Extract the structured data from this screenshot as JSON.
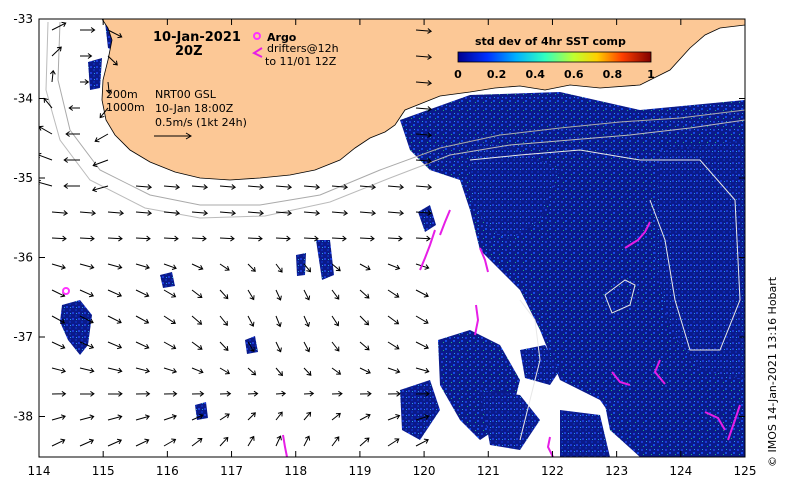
{
  "map": {
    "date": "10-Jan-2021",
    "time": "20Z",
    "legend_argo": "Argo",
    "legend_drifters": "drifters@12h",
    "legend_drifters_to": "to 11/01 12Z",
    "depth_200": "200m",
    "depth_1000": "1000m",
    "current_source": "NRT00 GSL",
    "current_time": "10-Jan 18:00Z",
    "scale_label": "0.5m/s (1kt 24h)",
    "colorbar_title": "std dev of 4hr SST comp",
    "colorbar_ticks": [
      "0",
      "0.2",
      "0.4",
      "0.6",
      "0.8",
      "1"
    ],
    "credit": "© IMOS 14-Jan-2021 13:16 Hobart",
    "lon_ticks": [
      "114",
      "115",
      "116",
      "117",
      "118",
      "119",
      "120",
      "121",
      "122",
      "123",
      "124",
      "125"
    ],
    "lat_ticks": [
      "-33",
      "-34",
      "-35",
      "-36",
      "-37",
      "-38"
    ],
    "colors": {
      "land": "#fcc896",
      "data_low": "#0a1a8a",
      "argo": "#ff33ff",
      "drifter": "#e61ee6"
    }
  }
}
